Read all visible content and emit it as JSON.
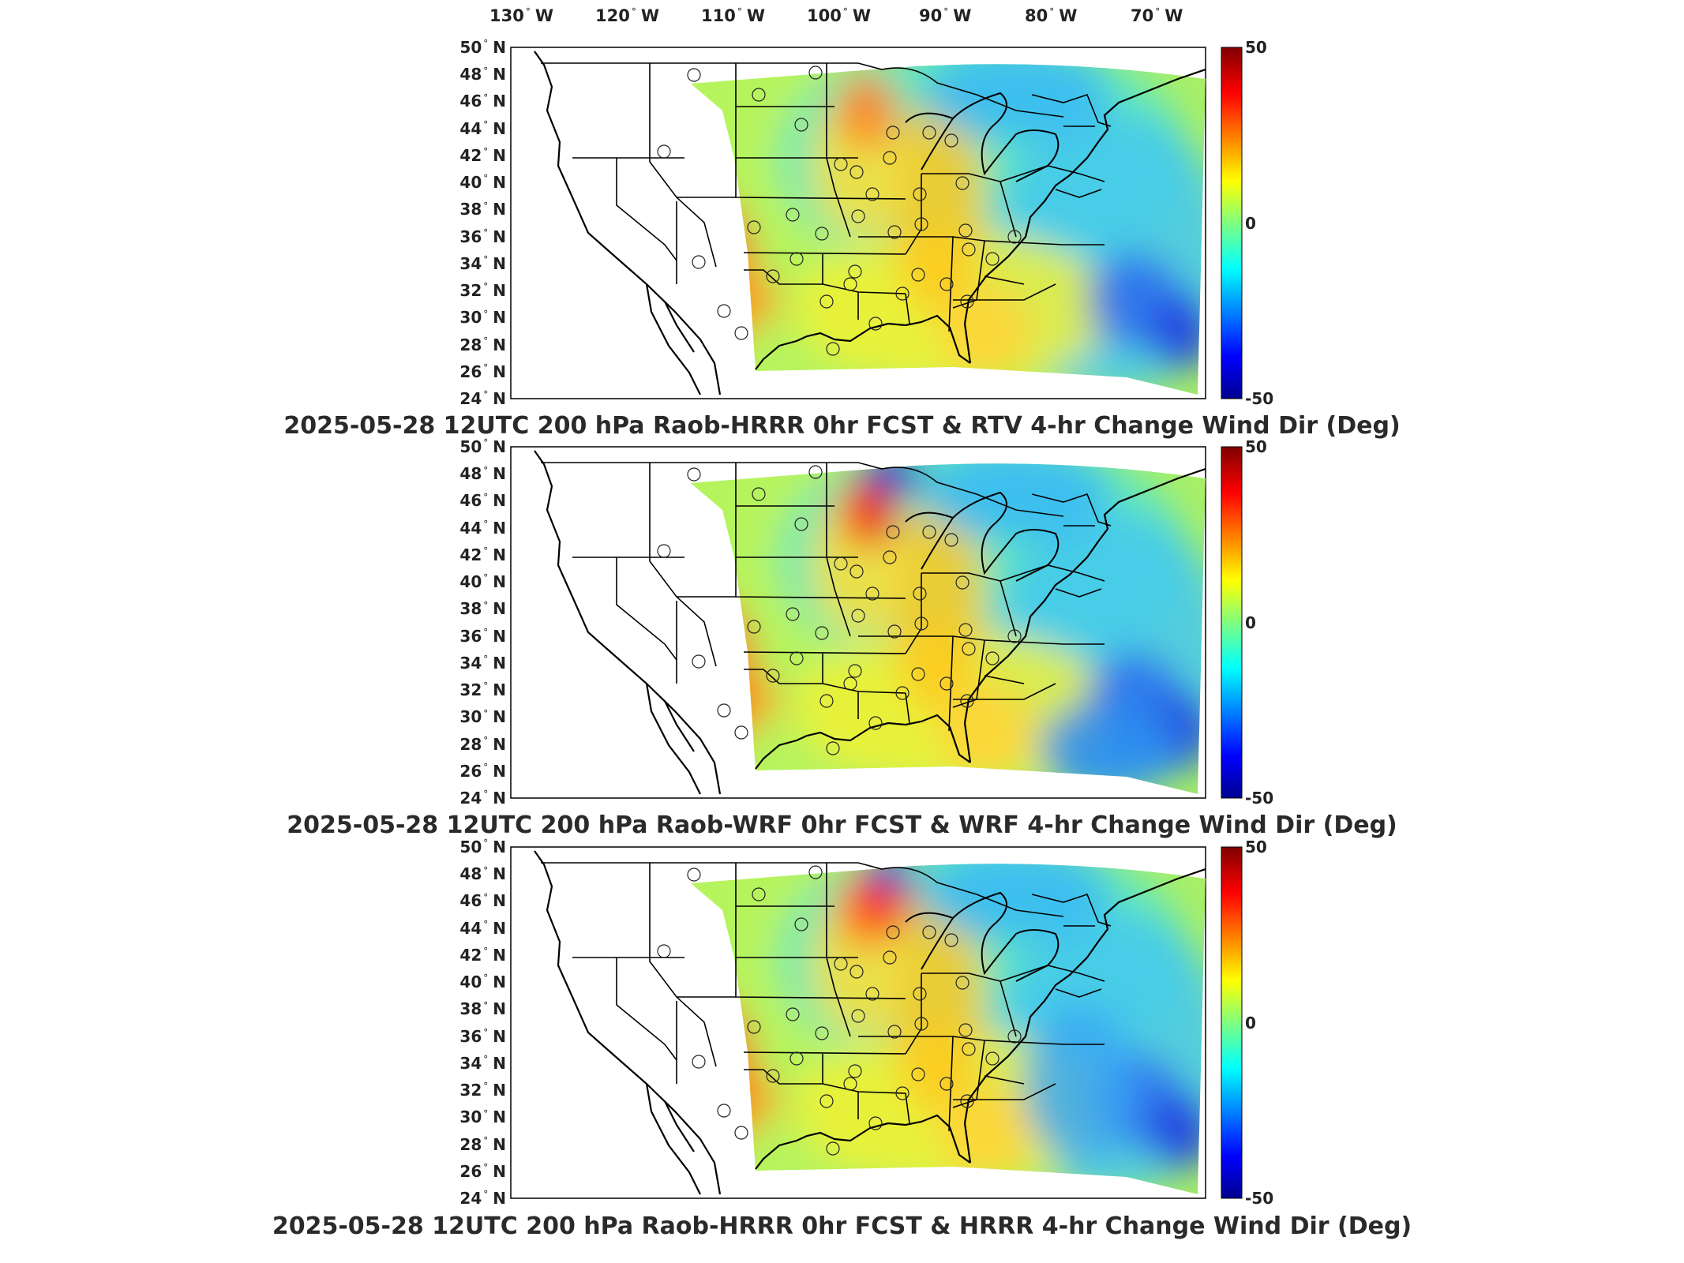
{
  "longitude_labels": [
    "130",
    "120",
    "110",
    "100",
    "90",
    "80",
    "70"
  ],
  "longitude_suffix": "W",
  "latitude_labels": [
    "50",
    "48",
    "46",
    "44",
    "42",
    "40",
    "38",
    "36",
    "34",
    "32",
    "30",
    "28",
    "26",
    "24"
  ],
  "latitude_suffix": "N",
  "colorbar": {
    "max_label": "50",
    "mid_label": "0",
    "min_label": "-50",
    "colormap": "jet",
    "colors": [
      "#00008f",
      "#0000ff",
      "#00ffff",
      "#ffff00",
      "#ff0000",
      "#800000"
    ]
  },
  "panels": [
    {
      "title": "2025-05-28 12UTC 200 hPa Raob-HRRR 0hr FCST & RTV 4-hr Change Wind Dir (Deg)",
      "variant": "rtv"
    },
    {
      "title": "2025-05-28 12UTC 200 hPa Raob-WRF 0hr FCST & WRF 4-hr Change Wind Dir (Deg)",
      "variant": "wrf"
    },
    {
      "title": "2025-05-28 12UTC 200 hPa Raob-HRRR 0hr FCST & HRRR 4-hr Change Wind Dir (Deg)",
      "variant": "hrrr"
    }
  ]
}
